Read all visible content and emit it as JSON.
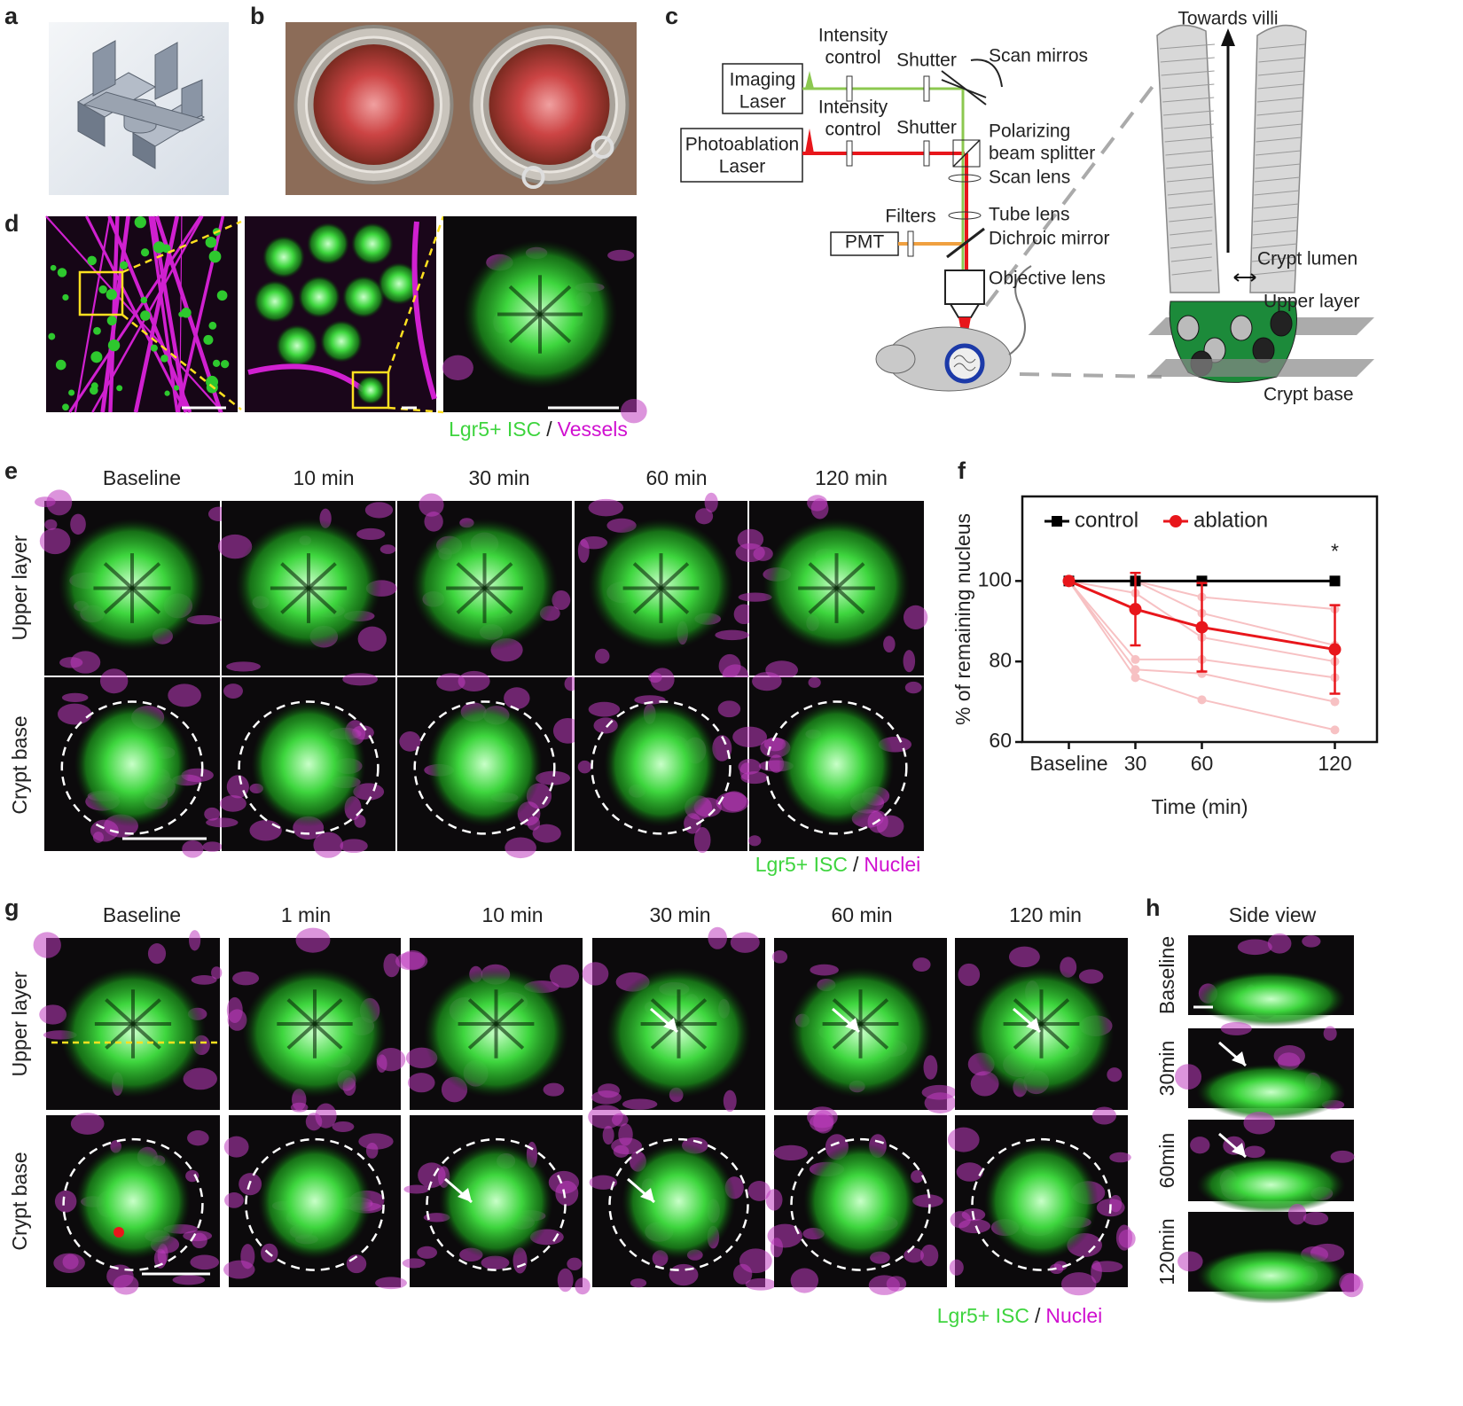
{
  "panel_labels": [
    "a",
    "b",
    "c",
    "d",
    "e",
    "f",
    "g",
    "h"
  ],
  "c": {
    "labels": [
      [
        "Imaging",
        "Laser"
      ],
      [
        "Intensity",
        "control"
      ],
      [
        "Shutter"
      ],
      [
        "Scan mirros"
      ],
      [
        "Photoablation",
        "Laser"
      ],
      [
        "Intensity",
        "control"
      ],
      [
        "Shutter"
      ],
      [
        "Polarizing",
        "beam splitter"
      ],
      [
        "Scan lens"
      ],
      [
        "Tube lens"
      ],
      [
        "Filters"
      ],
      [
        "PMT"
      ],
      [
        "Dichroic mirror"
      ],
      [
        "Objective lens"
      ],
      [
        "Towards villi"
      ],
      [
        "Crypt lumen"
      ],
      [
        "Upper layer"
      ],
      [
        "Crypt base"
      ]
    ]
  },
  "d": {
    "legend": [
      "Lgr5+ ISC",
      "/",
      "Vessels"
    ]
  },
  "e": {
    "columns": [
      "Baseline",
      "10 min",
      "30 min",
      "60 min",
      "120 min"
    ],
    "rows": [
      "Upper layer",
      "Crypt base"
    ],
    "legend": [
      "Lgr5+ ISC",
      "/",
      "Nuclei"
    ]
  },
  "g": {
    "columns": [
      "Baseline",
      "1 min",
      "10 min",
      "30 min",
      "60 min",
      "120 min"
    ],
    "rows": [
      "Upper layer",
      "Crypt base"
    ],
    "legend": [
      "Lgr5+ ISC",
      "/",
      "Nuclei"
    ]
  },
  "h": {
    "title": "Side view",
    "rows": [
      "Baseline",
      "30min",
      "60min",
      "120min"
    ]
  },
  "chart_data": {
    "type": "line",
    "xlabel": "Time (min)",
    "ylabel": "% of remaining nucleus",
    "x": [
      0,
      30,
      60,
      120
    ],
    "xlim": [
      -21,
      139
    ],
    "ylim": [
      60,
      121
    ],
    "xticks": [
      {
        "value": 0,
        "label": "Baseline"
      },
      30,
      60,
      120
    ],
    "yticks": [
      60,
      80,
      100
    ],
    "annotation": "*",
    "series": [
      {
        "name": "control",
        "color": "#000000",
        "marker": "square",
        "values": [
          100,
          100,
          100,
          100
        ]
      },
      {
        "name": "ablation",
        "color": "#e8161b",
        "marker": "circle",
        "values": [
          100,
          93,
          88.5,
          83
        ],
        "errors": [
          0,
          9,
          11,
          11
        ]
      },
      {
        "color": "#f7c1c3",
        "values": [
          100,
          100,
          96,
          93
        ]
      },
      {
        "color": "#f7c1c3",
        "values": [
          100,
          100,
          92,
          84
        ]
      },
      {
        "color": "#f7c1c3",
        "values": [
          100,
          97,
          86,
          80
        ]
      },
      {
        "color": "#f7c1c3",
        "values": [
          100,
          80.5,
          80.5,
          76
        ]
      },
      {
        "color": "#f7c1c3",
        "values": [
          100,
          78,
          77,
          70
        ]
      },
      {
        "color": "#f7c1c3",
        "values": [
          100,
          76,
          70.5,
          63
        ]
      }
    ]
  }
}
